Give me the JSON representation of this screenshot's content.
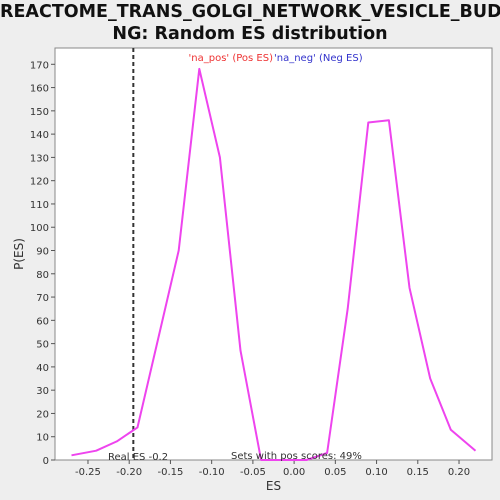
{
  "title_lines": [
    "REACTOME_TRANS_GOLGI_NETWORK_VESICLE_BUDDI",
    "NG: Random ES distribution"
  ],
  "colors": {
    "background": "#eeeeee",
    "plot_background": "#ffffff",
    "line": "#ee44ee",
    "pos_legend": "#ee3333",
    "neg_legend": "#3333cc",
    "real_es_line": "#333333",
    "text": "#333333"
  },
  "chart_data": {
    "type": "line",
    "title": "REACTOME_TRANS_GOLGI_NETWORK_VESICLE_BUDDING: Random ES distribution",
    "xlabel": "ES",
    "ylabel": "P(ES)",
    "xlim": [
      -0.29,
      0.24
    ],
    "ylim": [
      0,
      177
    ],
    "xticks": [
      -0.25,
      -0.2,
      -0.15,
      -0.1,
      -0.05,
      0.0,
      0.05,
      0.1,
      0.15,
      0.2
    ],
    "xtick_labels": [
      "-0.25",
      "-0.20",
      "-0.15",
      "-0.10",
      "-0.05",
      "0.00",
      "0.05",
      "0.10",
      "0.15",
      "0.20"
    ],
    "yticks": [
      0,
      10,
      20,
      30,
      40,
      50,
      60,
      70,
      80,
      90,
      100,
      110,
      120,
      130,
      140,
      150,
      160,
      170
    ],
    "grid": false,
    "series": [
      {
        "name": "distribution",
        "x": [
          -0.27,
          -0.24,
          -0.215,
          -0.19,
          -0.165,
          -0.14,
          -0.115,
          -0.09,
          -0.065,
          -0.04,
          -0.015,
          0.015,
          0.04,
          0.065,
          0.09,
          0.115,
          0.14,
          0.165,
          0.19,
          0.22
        ],
        "y": [
          2,
          4,
          8,
          14,
          52,
          90,
          168,
          130,
          47,
          0,
          0,
          0,
          3,
          65,
          145,
          146,
          74,
          35,
          13,
          4
        ]
      }
    ],
    "legend": [
      {
        "label": "'na_pos' (Pos ES)",
        "color": "#ee3333"
      },
      {
        "label": "'na_neg' (Neg ES)",
        "color": "#3333cc"
      }
    ],
    "legend_placement": "top-center",
    "annotations": [
      {
        "text": "Real ES -0.2"
      },
      {
        "text": "Sets with pos scores: 49%"
      }
    ],
    "real_es": -0.195
  }
}
